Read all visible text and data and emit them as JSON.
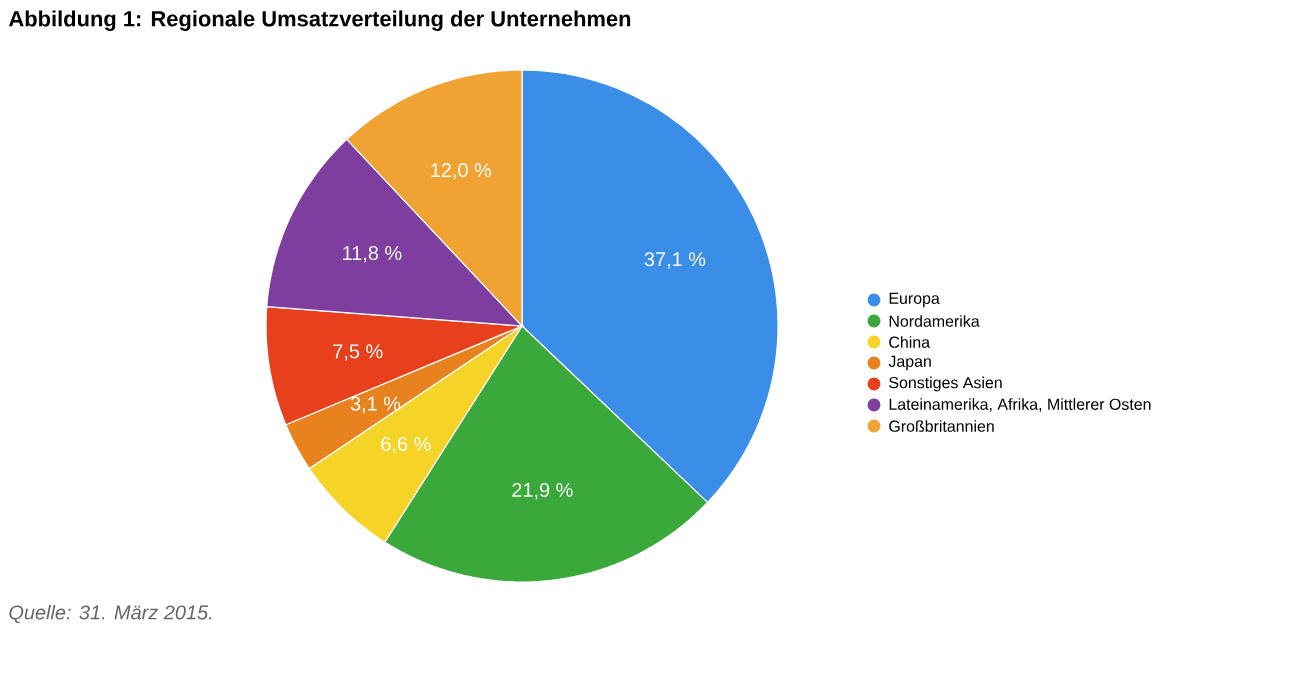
{
  "chart_data": {
    "type": "pie",
    "title": "Abbildung 1: Regionale Umsatzverteilung der Unternehmen",
    "categories": [
      "Europa",
      "Nordamerika",
      "China",
      "Japan",
      "Sonstiges Asien",
      "Lateinamerika, Afrika, Mittlerer Osten",
      "Großbritannien"
    ],
    "values": [
      37.1,
      21.9,
      6.6,
      3.1,
      7.5,
      11.8,
      12.0
    ],
    "value_labels": [
      "37,1 %",
      "21,9 %",
      "6,6 %",
      "3,1 %",
      "7,5 %",
      "11,8 %",
      "12,0 %"
    ],
    "colors": [
      "#3b8ee8",
      "#3aa83a",
      "#f5d327",
      "#e8821e",
      "#e8401c",
      "#7e3ea0",
      "#f0a232"
    ],
    "legend": "right",
    "annotations": [
      "Quelle: 31. März 2015."
    ]
  }
}
